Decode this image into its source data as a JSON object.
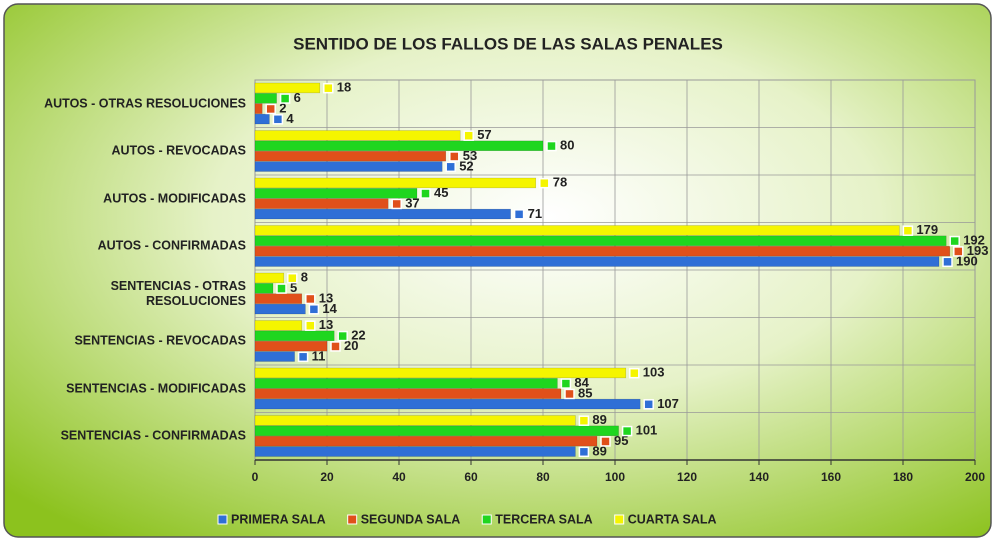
{
  "chart_data": {
    "type": "bar",
    "orientation": "horizontal",
    "title": "SENTIDO DE LOS FALLOS DE LAS SALAS PENALES",
    "categories": [
      "AUTOS - OTRAS RESOLUCIONES",
      "AUTOS - REVOCADAS",
      "AUTOS - MODIFICADAS",
      "AUTOS - CONFIRMADAS",
      "SENTENCIAS - OTRAS RESOLUCIONES",
      "SENTENCIAS - REVOCADAS",
      "SENTENCIAS - MODIFICADAS",
      "SENTENCIAS - CONFIRMADAS"
    ],
    "series": [
      {
        "name": "PRIMERA SALA",
        "color": "#2f6fd6",
        "values": [
          4,
          52,
          71,
          190,
          14,
          11,
          107,
          89
        ]
      },
      {
        "name": "SEGUNDA SALA",
        "color": "#e0501a",
        "values": [
          2,
          53,
          37,
          193,
          13,
          20,
          85,
          95
        ]
      },
      {
        "name": "TERCERA SALA",
        "color": "#1fd61f",
        "values": [
          6,
          80,
          45,
          192,
          5,
          22,
          84,
          101
        ]
      },
      {
        "name": "CUARTA SALA",
        "color": "#f5f500",
        "values": [
          18,
          57,
          78,
          179,
          8,
          13,
          103,
          89
        ]
      }
    ],
    "xlim": [
      0,
      200
    ],
    "xticks": [
      0,
      20,
      40,
      60,
      80,
      100,
      120,
      140,
      160,
      180,
      200
    ],
    "grid": true,
    "legend": "bottom"
  }
}
